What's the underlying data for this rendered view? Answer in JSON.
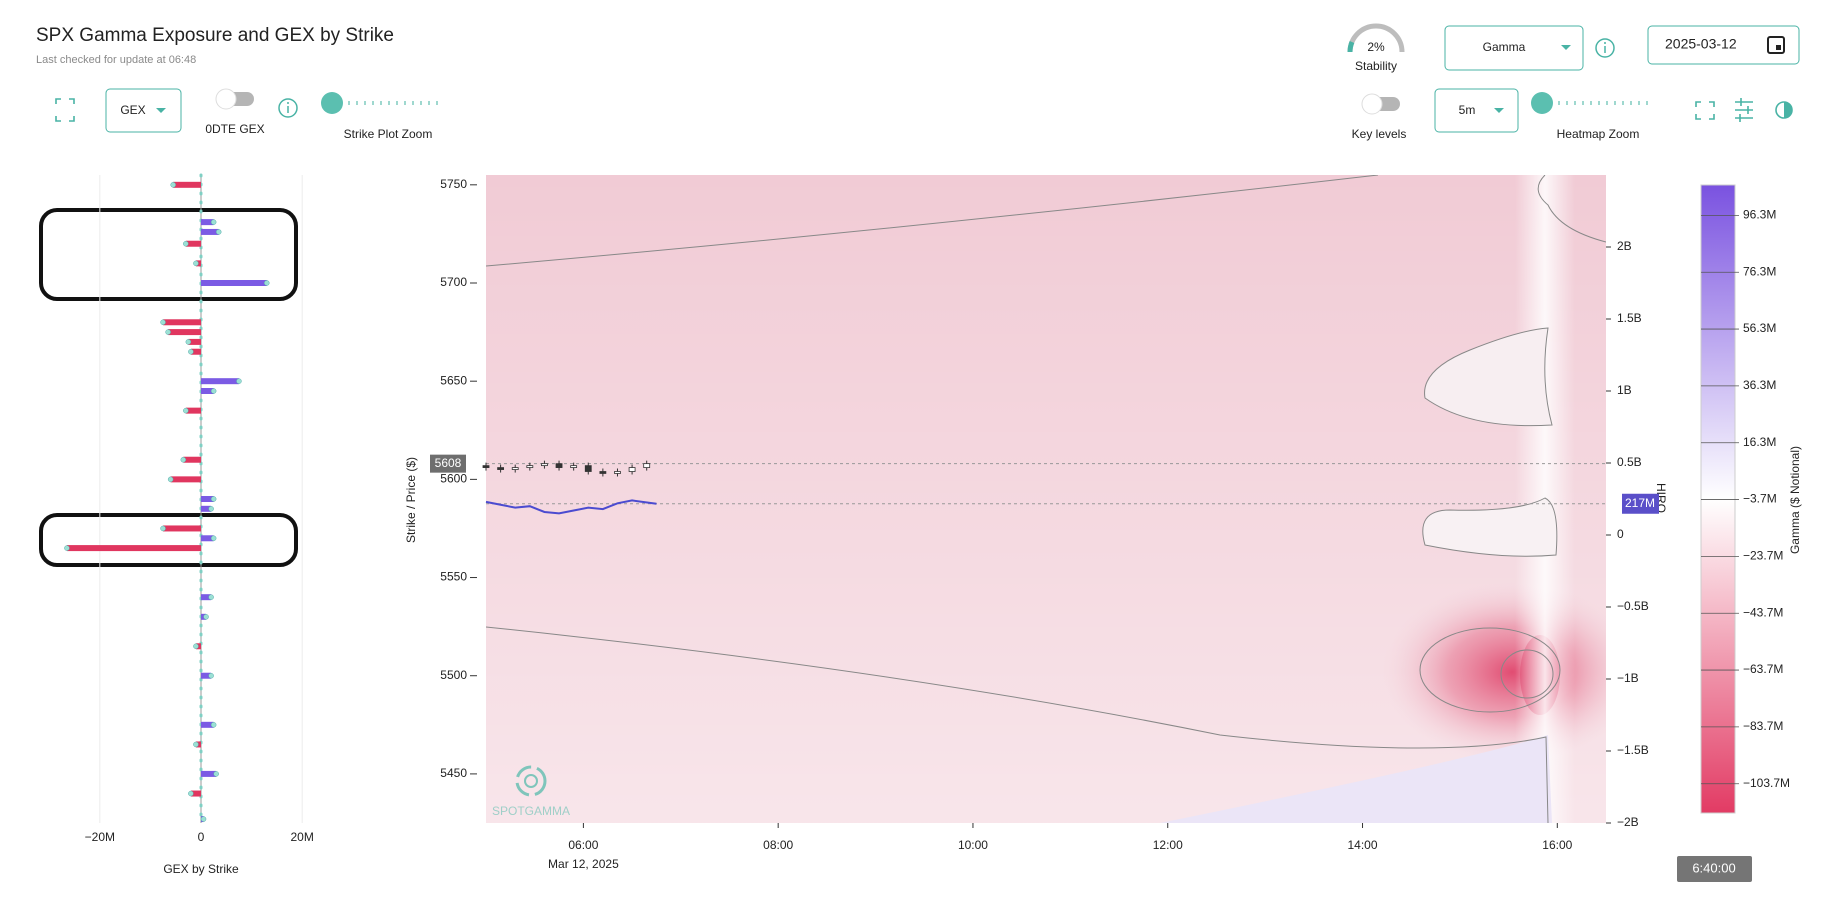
{
  "header": {
    "title": "SPX Gamma Exposure and GEX by Strike",
    "subtitle": "Last checked for update at 06:48"
  },
  "controls": {
    "stability_value": "2%",
    "stability_label": "Stability",
    "metric_select": "Gamma",
    "date": "2025-03-12",
    "gex_select": "GEX",
    "odte_label": "0DTE GEX",
    "strike_zoom_label": "Strike Plot Zoom",
    "key_levels_label": "Key levels",
    "interval_select": "5m",
    "heatmap_zoom_label": "Heatmap Zoom",
    "timestamp": "6:40:00"
  },
  "chart_data": [
    {
      "type": "hbar",
      "title": "GEX by Strike",
      "xlim": [
        -34,
        34
      ],
      "xticks": [
        {
          "value": -20,
          "label": "−20M"
        },
        0,
        {
          "value": 20,
          "label": "20M"
        }
      ],
      "ylim": [
        5425,
        5755
      ],
      "y": [
        5750,
        5731,
        5726,
        5720,
        5710,
        5700,
        5680,
        5675,
        5670,
        5665,
        5650,
        5645,
        5635,
        5610,
        5600,
        5590,
        5585,
        5575,
        5570,
        5565,
        5540,
        5530,
        5515,
        5500,
        5475,
        5465,
        5450,
        5440,
        5427
      ],
      "values": [
        -5.5,
        2.5,
        3.5,
        -3,
        -1,
        13,
        -7.5,
        -6.5,
        -2.5,
        -2,
        7.5,
        2.5,
        -3,
        -3.5,
        -6,
        2.5,
        2,
        -7.5,
        2.5,
        -26.5,
        2,
        1,
        -1,
        2,
        2.5,
        -1,
        3,
        -2,
        0.5
      ],
      "color_positive": "#7b5be4",
      "color_negative": "#e0365f"
    },
    {
      "type": "heatmap",
      "ylabel": "Strike / Price ($)",
      "y2label": "HIRO",
      "date_label": "Mar 12, 2025",
      "watermark": "SPOTGAMMA",
      "xlim": [
        5,
        16.5
      ],
      "xticks": [
        {
          "value": 6,
          "label": "06:00"
        },
        {
          "value": 8,
          "label": "08:00"
        },
        {
          "value": 10,
          "label": "10:00"
        },
        {
          "value": 12,
          "label": "12:00"
        },
        {
          "value": 14,
          "label": "14:00"
        },
        {
          "value": 16,
          "label": "16:00"
        }
      ],
      "ylim": [
        5425,
        5755
      ],
      "yticks": [
        5450,
        5500,
        5550,
        5600,
        5650,
        5700,
        5750
      ],
      "y2lim": [
        -2,
        2.5
      ],
      "y2ticks": [
        {
          "value": -2,
          "label": "−2B"
        },
        {
          "value": -1.5,
          "label": "−1.5B"
        },
        {
          "value": -1,
          "label": "−1B"
        },
        {
          "value": -0.5,
          "label": "−0.5B"
        },
        0,
        {
          "value": 0.5,
          "label": "0.5B"
        },
        {
          "value": 1,
          "label": "1B"
        },
        {
          "value": 1.5,
          "label": "1.5B"
        },
        {
          "value": 2,
          "label": "2B"
        }
      ],
      "last_price": 5608,
      "hiro_label": {
        "value": 0.217,
        "label": "217M"
      },
      "series": [
        {
          "name": "HIRO",
          "color": "#4b4bd0",
          "axis": "y2",
          "x": [
            5.0,
            5.15,
            5.3,
            5.45,
            5.6,
            5.75,
            5.9,
            6.05,
            6.2,
            6.35,
            6.5,
            6.75
          ],
          "values": [
            0.23,
            0.21,
            0.19,
            0.2,
            0.16,
            0.15,
            0.17,
            0.19,
            0.18,
            0.22,
            0.24,
            0.217
          ]
        }
      ],
      "candles": {
        "x": [
          5.0,
          5.15,
          5.3,
          5.45,
          5.6,
          5.75,
          5.9,
          6.05,
          6.2,
          6.35,
          6.5,
          6.65
        ],
        "open": [
          5607,
          5606,
          5605,
          5606,
          5607,
          5608,
          5606,
          5607,
          5604,
          5603,
          5604,
          5606
        ],
        "close": [
          5606,
          5605,
          5606,
          5607,
          5608,
          5606,
          5607,
          5604,
          5603,
          5604,
          5606,
          5608
        ],
        "color_up": "#ffffff",
        "color_down": "#333333"
      }
    },
    {
      "type": "colorbar",
      "label": "Gamma ($ Notional)",
      "clim": [
        -114,
        107
      ],
      "cticks": [
        {
          "value": 96.3,
          "label": "96.3M"
        },
        {
          "value": 76.3,
          "label": "76.3M"
        },
        {
          "value": 56.3,
          "label": "56.3M"
        },
        {
          "value": 36.3,
          "label": "36.3M"
        },
        {
          "value": 16.3,
          "label": "16.3M"
        },
        {
          "value": -3.7,
          "label": "−3.7M"
        },
        {
          "value": -23.7,
          "label": "−23.7M"
        },
        {
          "value": -43.7,
          "label": "−43.7M"
        },
        {
          "value": -63.7,
          "label": "−63.7M"
        },
        {
          "value": -83.7,
          "label": "−83.7M"
        },
        {
          "value": -103.7,
          "label": "−103.7M"
        }
      ],
      "colors": [
        "#7a52e0",
        "#ffffff",
        "#e23b64"
      ]
    }
  ]
}
